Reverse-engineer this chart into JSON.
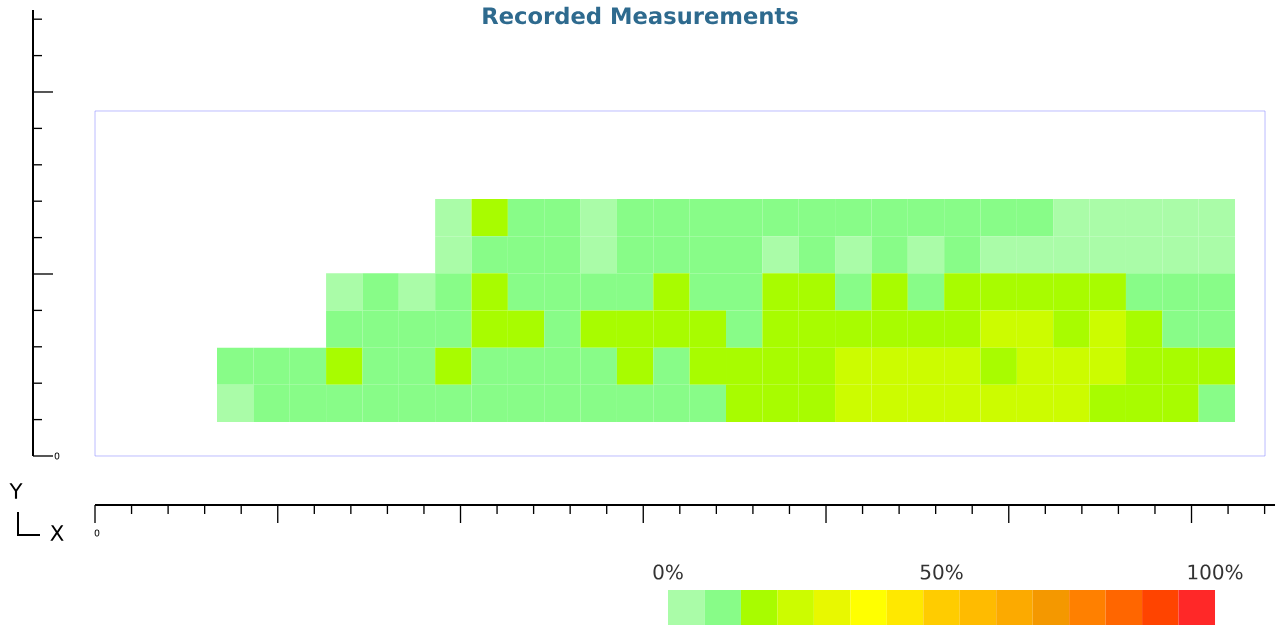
{
  "chart_data": {
    "type": "heatmap",
    "title": "Recorded Measurements",
    "categories": [
      null,
      null,
      null,
      null,
      null,
      null,
      null,
      null,
      null,
      null,
      null,
      null,
      null,
      null,
      null,
      null,
      null,
      null,
      null,
      null,
      null,
      null,
      null,
      null,
      null,
      null,
      null,
      null
    ],
    "y_categories": [
      null,
      null,
      null,
      null,
      null,
      null
    ],
    "cells": [
      [
        null,
        null,
        null,
        null,
        null,
        null,
        3,
        17,
        10,
        10,
        3,
        10,
        10,
        10,
        10,
        10,
        10,
        10,
        10,
        10,
        10,
        10,
        10,
        3,
        3,
        3,
        3,
        3
      ],
      [
        null,
        null,
        null,
        null,
        null,
        null,
        3,
        10,
        10,
        10,
        3,
        10,
        10,
        10,
        10,
        3,
        10,
        3,
        10,
        3,
        10,
        3,
        3,
        3,
        3,
        3,
        3,
        3
      ],
      [
        null,
        null,
        null,
        3,
        10,
        3,
        10,
        17,
        10,
        10,
        10,
        10,
        17,
        10,
        10,
        17,
        17,
        10,
        17,
        10,
        17,
        17,
        17,
        17,
        17,
        10,
        10,
        10
      ],
      [
        null,
        null,
        null,
        10,
        10,
        10,
        10,
        17,
        17,
        10,
        17,
        17,
        17,
        17,
        10,
        17,
        17,
        17,
        17,
        17,
        17,
        23,
        23,
        17,
        23,
        17,
        10,
        10
      ],
      [
        10,
        10,
        10,
        17,
        10,
        10,
        17,
        10,
        10,
        10,
        10,
        17,
        10,
        17,
        17,
        17,
        17,
        23,
        23,
        23,
        23,
        17,
        23,
        23,
        23,
        17,
        17,
        17
      ],
      [
        3,
        10,
        10,
        10,
        10,
        10,
        10,
        10,
        10,
        10,
        10,
        10,
        10,
        10,
        17,
        17,
        17,
        23,
        23,
        23,
        23,
        23,
        23,
        23,
        17,
        17,
        17,
        10
      ]
    ],
    "clim": [
      0,
      100
    ],
    "cticks": [
      {
        "value": 0,
        "label": "0%"
      },
      {
        "value": 50,
        "label": "50%"
      },
      {
        "value": 100,
        "label": "100%"
      }
    ],
    "annotations": [
      "0",
      "0",
      "Y",
      "X"
    ]
  }
}
